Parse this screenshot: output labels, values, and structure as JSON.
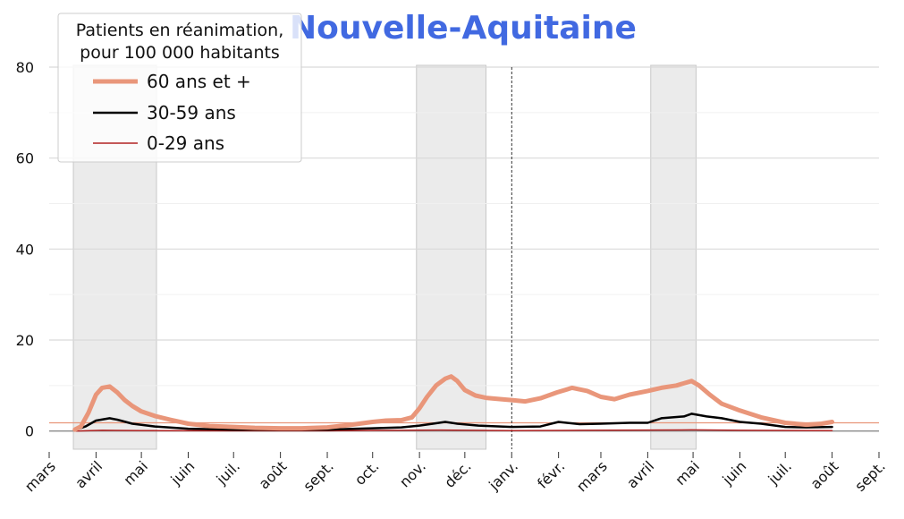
{
  "chart_data": {
    "type": "line",
    "title": "Nouvelle-Aquitaine",
    "title_color": "#4169e1",
    "legend": {
      "title_line1": "Patients en réanimation,",
      "title_line2": "pour 100 000 habitants",
      "placement": "top-left"
    },
    "ylim": [
      -4,
      80
    ],
    "y_ticks": [
      0,
      20,
      40,
      60,
      80
    ],
    "y_minor_ticks": [
      10,
      30,
      50,
      70
    ],
    "x_ticks": [
      {
        "label": "mars",
        "date": "2020-03-01"
      },
      {
        "label": "avril",
        "date": "2020-04-01"
      },
      {
        "label": "mai",
        "date": "2020-05-01"
      },
      {
        "label": "juin",
        "date": "2020-06-01"
      },
      {
        "label": "juil.",
        "date": "2020-07-01"
      },
      {
        "label": "août",
        "date": "2020-08-01"
      },
      {
        "label": "sept.",
        "date": "2020-09-01"
      },
      {
        "label": "oct.",
        "date": "2020-10-01"
      },
      {
        "label": "nov.",
        "date": "2020-11-01"
      },
      {
        "label": "déc.",
        "date": "2020-12-01"
      },
      {
        "label": "janv.",
        "date": "2021-01-01"
      },
      {
        "label": "févr.",
        "date": "2021-02-01"
      },
      {
        "label": "mars",
        "date": "2021-03-01"
      },
      {
        "label": "avril",
        "date": "2021-04-01"
      },
      {
        "label": "mai",
        "date": "2021-05-01"
      },
      {
        "label": "juin",
        "date": "2021-06-01"
      },
      {
        "label": "juil.",
        "date": "2021-07-01"
      },
      {
        "label": "août",
        "date": "2021-08-01"
      },
      {
        "label": "sept.",
        "date": "2021-09-01"
      }
    ],
    "x_range": [
      "2020-03-01",
      "2021-09-01"
    ],
    "shaded_periods": [
      {
        "start": "2020-03-17",
        "end": "2020-05-11"
      },
      {
        "start": "2020-10-30",
        "end": "2020-12-15"
      },
      {
        "start": "2021-04-03",
        "end": "2021-05-03"
      }
    ],
    "vline_date": "2021-01-01",
    "hline": {
      "value": 1.8,
      "color": "#e9967a"
    },
    "series": [
      {
        "name": "60 ans et +",
        "color": "#e9967a",
        "width": 5,
        "points": [
          [
            "2020-03-18",
            0.3
          ],
          [
            "2020-03-22",
            1.0
          ],
          [
            "2020-03-27",
            4.0
          ],
          [
            "2020-04-01",
            8.0
          ],
          [
            "2020-04-05",
            9.5
          ],
          [
            "2020-04-10",
            9.8
          ],
          [
            "2020-04-15",
            8.5
          ],
          [
            "2020-04-20",
            6.8
          ],
          [
            "2020-04-25",
            5.5
          ],
          [
            "2020-05-01",
            4.3
          ],
          [
            "2020-05-10",
            3.3
          ],
          [
            "2020-05-20",
            2.5
          ],
          [
            "2020-06-01",
            1.6
          ],
          [
            "2020-06-15",
            1.1
          ],
          [
            "2020-07-01",
            0.9
          ],
          [
            "2020-07-15",
            0.7
          ],
          [
            "2020-08-01",
            0.6
          ],
          [
            "2020-08-15",
            0.6
          ],
          [
            "2020-09-01",
            0.8
          ],
          [
            "2020-09-15",
            1.3
          ],
          [
            "2020-10-01",
            2.0
          ],
          [
            "2020-10-10",
            2.3
          ],
          [
            "2020-10-20",
            2.4
          ],
          [
            "2020-10-27",
            3.0
          ],
          [
            "2020-11-01",
            5.0
          ],
          [
            "2020-11-06",
            7.5
          ],
          [
            "2020-11-12",
            10.0
          ],
          [
            "2020-11-18",
            11.5
          ],
          [
            "2020-11-22",
            12.0
          ],
          [
            "2020-11-26",
            11.0
          ],
          [
            "2020-12-01",
            9.0
          ],
          [
            "2020-12-08",
            7.8
          ],
          [
            "2020-12-15",
            7.3
          ],
          [
            "2020-12-25",
            7.0
          ],
          [
            "2021-01-01",
            6.8
          ],
          [
            "2021-01-10",
            6.5
          ],
          [
            "2021-01-20",
            7.2
          ],
          [
            "2021-01-31",
            8.5
          ],
          [
            "2021-02-10",
            9.5
          ],
          [
            "2021-02-20",
            8.8
          ],
          [
            "2021-03-01",
            7.5
          ],
          [
            "2021-03-10",
            7.0
          ],
          [
            "2021-03-20",
            8.0
          ],
          [
            "2021-04-01",
            8.8
          ],
          [
            "2021-04-10",
            9.5
          ],
          [
            "2021-04-20",
            10.0
          ],
          [
            "2021-04-30",
            11.0
          ],
          [
            "2021-05-05",
            10.0
          ],
          [
            "2021-05-12",
            8.0
          ],
          [
            "2021-05-20",
            6.0
          ],
          [
            "2021-06-01",
            4.5
          ],
          [
            "2021-06-15",
            3.0
          ],
          [
            "2021-07-01",
            1.8
          ],
          [
            "2021-07-15",
            1.4
          ],
          [
            "2021-07-25",
            1.6
          ],
          [
            "2021-08-01",
            2.0
          ]
        ]
      },
      {
        "name": "30-59 ans",
        "color": "#000000",
        "width": 2.5,
        "points": [
          [
            "2020-03-18",
            0.2
          ],
          [
            "2020-03-25",
            1.0
          ],
          [
            "2020-04-01",
            2.3
          ],
          [
            "2020-04-10",
            2.8
          ],
          [
            "2020-04-15",
            2.5
          ],
          [
            "2020-04-25",
            1.6
          ],
          [
            "2020-05-10",
            1.0
          ],
          [
            "2020-06-01",
            0.5
          ],
          [
            "2020-07-01",
            0.3
          ],
          [
            "2020-08-01",
            0.3
          ],
          [
            "2020-09-01",
            0.3
          ],
          [
            "2020-10-01",
            0.6
          ],
          [
            "2020-10-20",
            0.8
          ],
          [
            "2020-11-01",
            1.2
          ],
          [
            "2020-11-12",
            1.7
          ],
          [
            "2020-11-18",
            2.0
          ],
          [
            "2020-11-26",
            1.6
          ],
          [
            "2020-12-10",
            1.2
          ],
          [
            "2021-01-01",
            0.9
          ],
          [
            "2021-01-20",
            1.0
          ],
          [
            "2021-02-01",
            2.0
          ],
          [
            "2021-02-15",
            1.5
          ],
          [
            "2021-03-01",
            1.6
          ],
          [
            "2021-03-20",
            1.8
          ],
          [
            "2021-04-01",
            1.8
          ],
          [
            "2021-04-10",
            2.8
          ],
          [
            "2021-04-25",
            3.2
          ],
          [
            "2021-04-30",
            3.8
          ],
          [
            "2021-05-10",
            3.2
          ],
          [
            "2021-05-20",
            2.8
          ],
          [
            "2021-06-01",
            2.0
          ],
          [
            "2021-06-15",
            1.6
          ],
          [
            "2021-07-01",
            0.9
          ],
          [
            "2021-07-15",
            0.8
          ],
          [
            "2021-08-01",
            0.9
          ]
        ]
      },
      {
        "name": "0-29 ans",
        "color": "#b22222",
        "width": 1.5,
        "points": [
          [
            "2020-03-18",
            0.0
          ],
          [
            "2020-04-05",
            0.15
          ],
          [
            "2020-05-01",
            0.1
          ],
          [
            "2020-07-01",
            0.05
          ],
          [
            "2020-09-01",
            0.05
          ],
          [
            "2020-11-15",
            0.2
          ],
          [
            "2021-01-01",
            0.1
          ],
          [
            "2021-02-15",
            0.15
          ],
          [
            "2021-04-30",
            0.25
          ],
          [
            "2021-06-01",
            0.15
          ],
          [
            "2021-08-01",
            0.1
          ]
        ]
      }
    ]
  }
}
